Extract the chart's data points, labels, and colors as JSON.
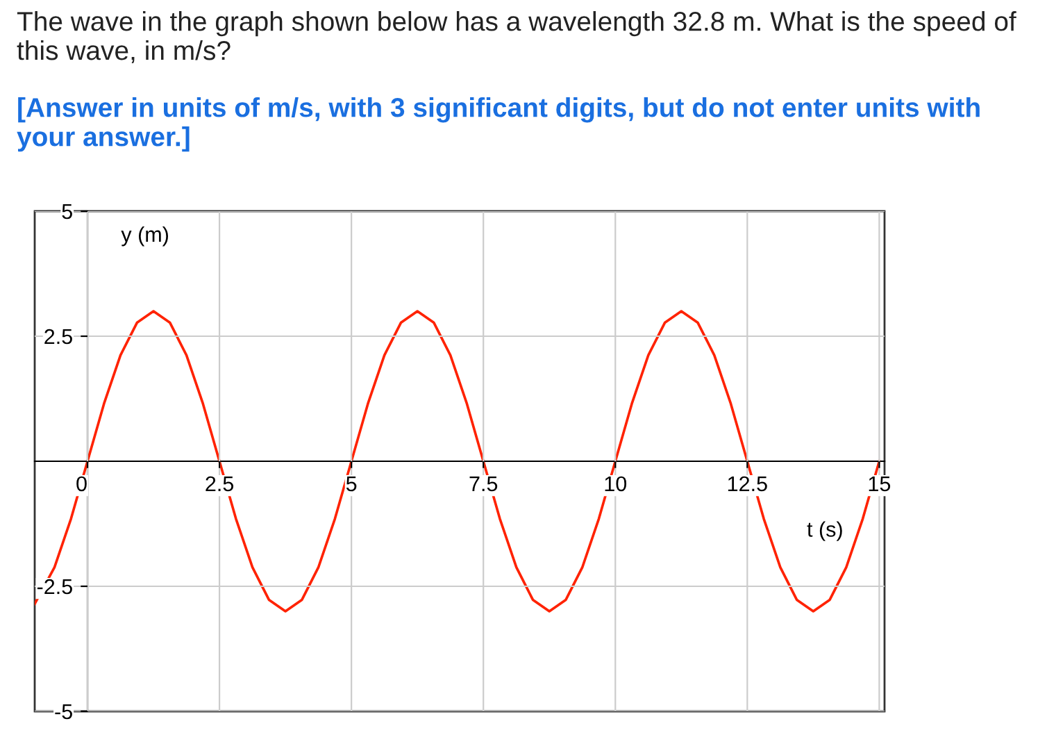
{
  "chart_data": {
    "type": "line",
    "title": "The wave in the graph shown below has a wavelength 32.8 m. What is the speed of this wave, in m/s?",
    "subtitle": "[Answer in units of m/s, with 3 significant digits, but do not enter units with your answer.]",
    "xlabel": "t (s)",
    "ylabel": "y (m)",
    "x": [
      -1,
      -0.625,
      -0.3125,
      0,
      0.3125,
      0.625,
      0.9375,
      1.25,
      1.5625,
      1.875,
      2.1875,
      2.5,
      2.8125,
      3.125,
      3.4375,
      3.75,
      4.0625,
      4.375,
      4.6875,
      5,
      5.3125,
      5.625,
      5.9375,
      6.25,
      6.5625,
      6.875,
      7.1875,
      7.5,
      7.8125,
      8.125,
      8.4375,
      8.75,
      9.0625,
      9.375,
      9.6875,
      10,
      10.3125,
      10.625,
      10.9375,
      11.25,
      11.5625,
      11.875,
      12.1875,
      12.5,
      12.8125,
      13.125,
      13.4375,
      13.75,
      14.0625,
      14.375,
      14.6875,
      15
    ],
    "series": [
      {
        "color": "#ff2200",
        "values": [
          -2.85,
          -2.12,
          -1.15,
          0,
          1.15,
          2.12,
          2.77,
          3,
          2.77,
          2.12,
          1.15,
          0,
          -1.15,
          -2.12,
          -2.77,
          -3,
          -2.77,
          -2.12,
          -1.15,
          0,
          1.15,
          2.12,
          2.77,
          3,
          2.77,
          2.12,
          1.15,
          0,
          -1.15,
          -2.12,
          -2.77,
          -3,
          -2.77,
          -2.12,
          -1.15,
          0,
          1.15,
          2.12,
          2.77,
          3,
          2.77,
          2.12,
          1.15,
          0,
          -1.15,
          -2.12,
          -2.77,
          -3,
          -2.77,
          -2.12,
          -1.15,
          0
        ]
      }
    ],
    "xlim": [
      -1,
      15.1
    ],
    "ylim": [
      -5,
      5
    ],
    "xticks": [
      0,
      2.5,
      5,
      7.5,
      10,
      12.5,
      15
    ],
    "yticks": [
      -5,
      -2.5,
      2.5,
      5
    ],
    "grid": true,
    "legend": false,
    "marker": "none",
    "line_style": "solid"
  }
}
